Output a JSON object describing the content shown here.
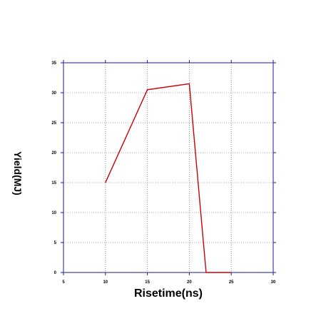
{
  "chart_data": {
    "type": "line",
    "title": "",
    "xlabel": "Risetime(ns)",
    "ylabel": "Yield(MJ)",
    "xlim": [
      5,
      30
    ],
    "ylim": [
      0,
      35
    ],
    "xticks": [
      5,
      10,
      15,
      20,
      25,
      30
    ],
    "yticks": [
      0,
      5,
      10,
      15,
      20,
      25,
      30,
      35
    ],
    "grid": true,
    "legend": "none",
    "series": [
      {
        "x": [
          10,
          15,
          20,
          22,
          25
        ],
        "y": [
          15,
          30.5,
          31.5,
          0,
          0
        ],
        "color": "#cc0000"
      }
    ],
    "colors": {
      "frame": "#1a1aa0",
      "grid": "#555555",
      "line": "#cc0000"
    }
  }
}
